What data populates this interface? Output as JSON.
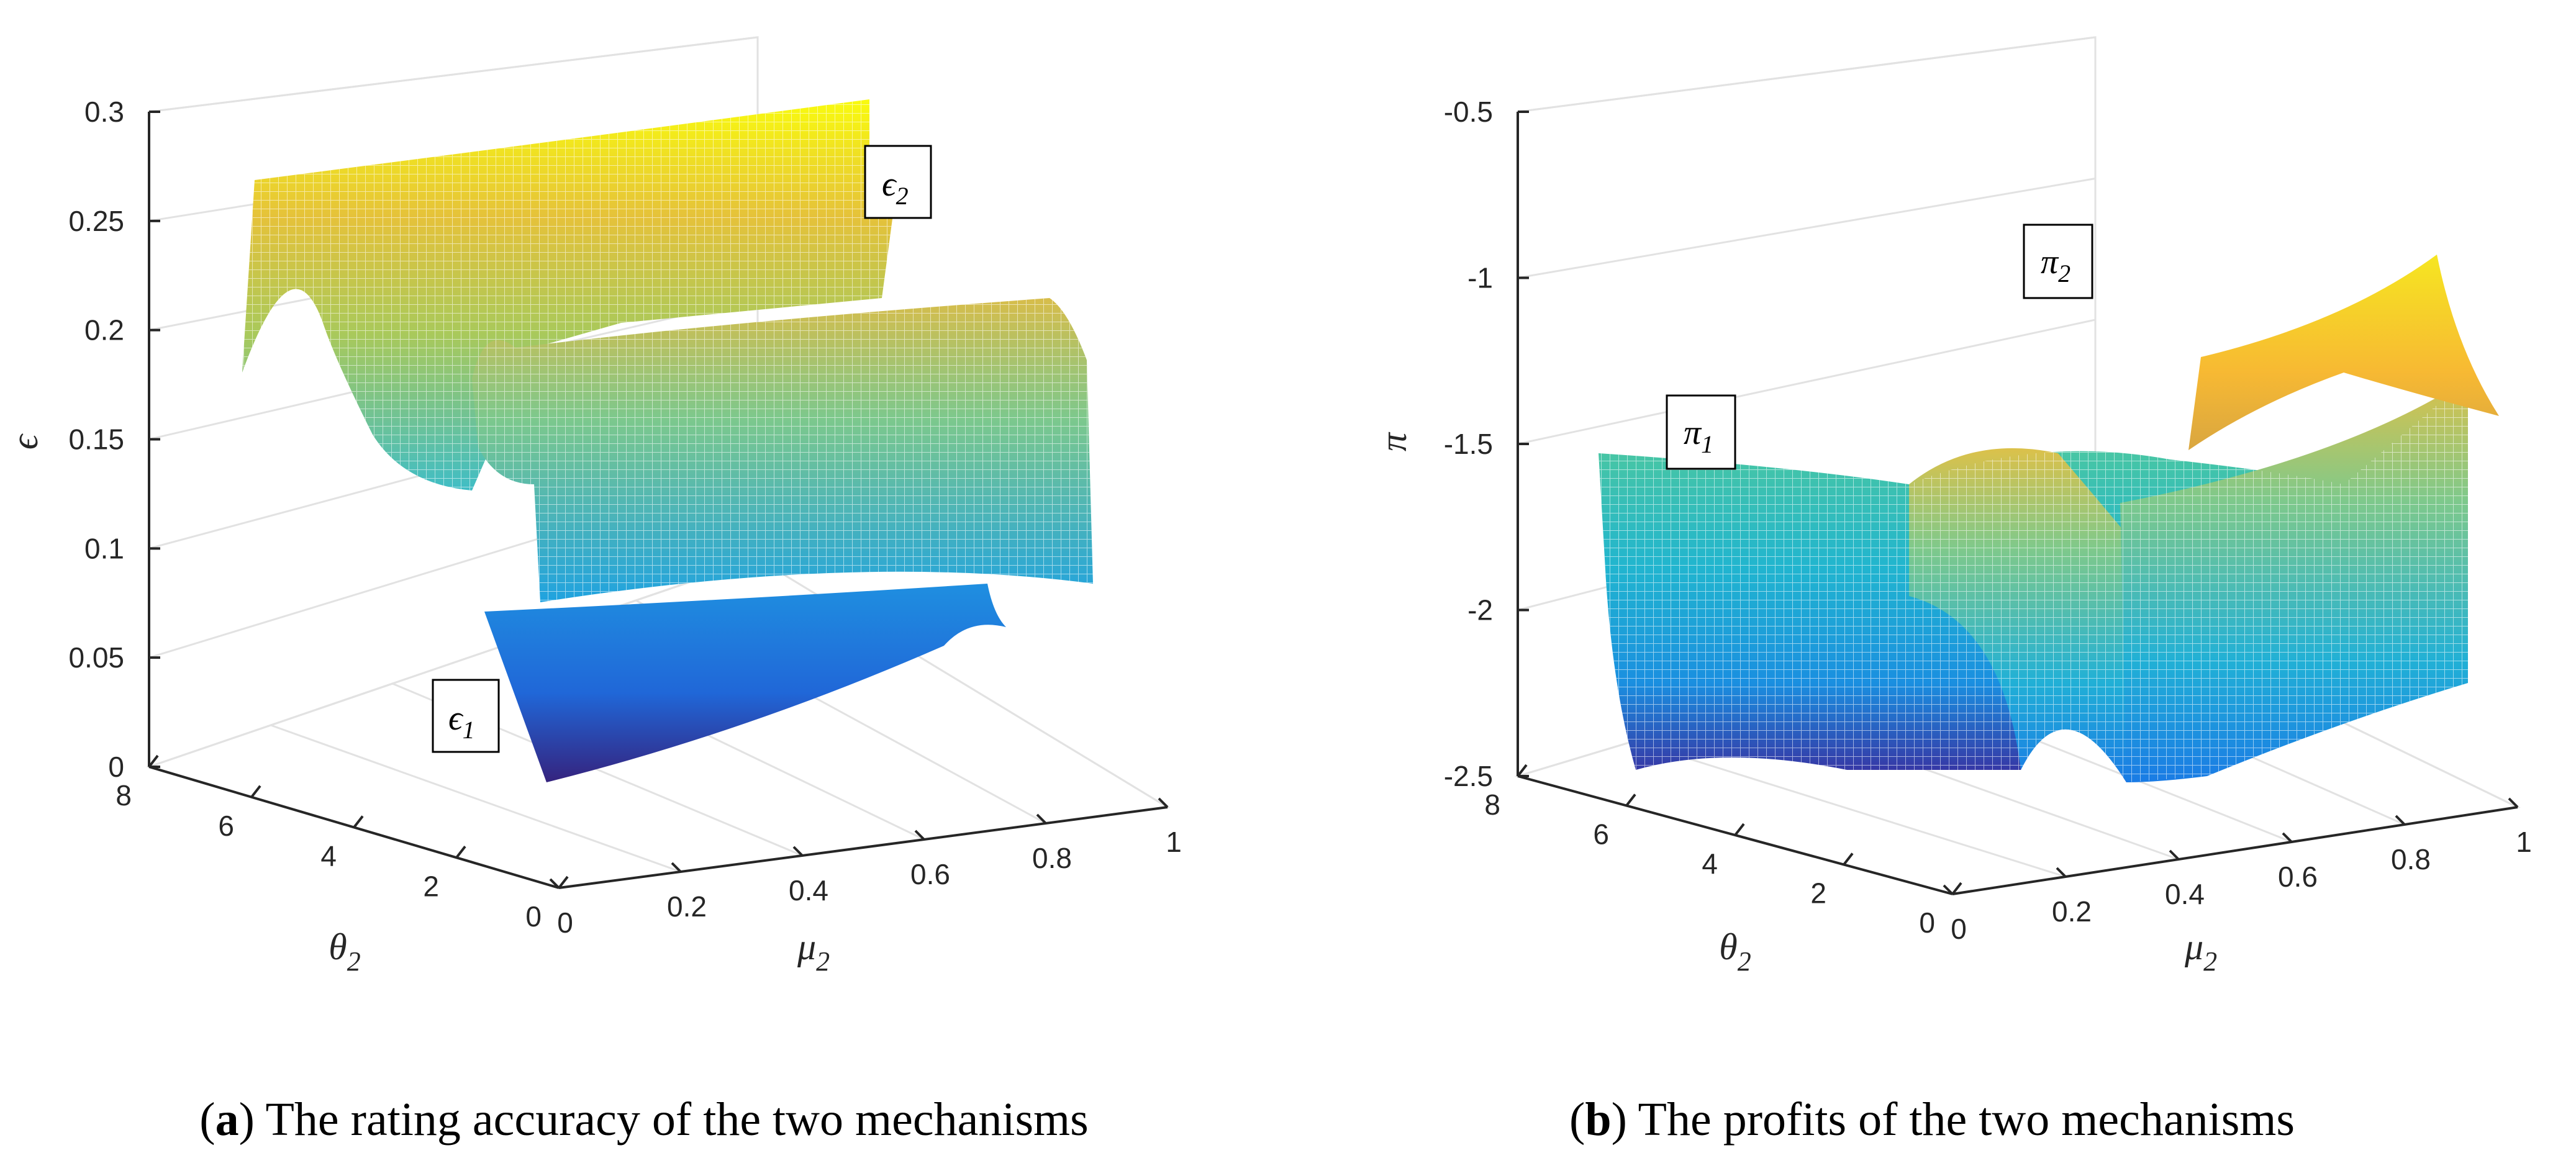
{
  "chart_data": [
    {
      "type": "surface3d",
      "panel_tag": "a",
      "caption": "The rating accuracy of the two mechanisms",
      "zlabel": "ϵ",
      "xlabel": "μ",
      "xlabel_sub": "2",
      "ylabel": "θ",
      "ylabel_sub": "2",
      "xlim": [
        0,
        1
      ],
      "ylim": [
        0,
        8
      ],
      "zlim": [
        0,
        0.3
      ],
      "x_ticks": [
        "0",
        "0.2",
        "0.4",
        "0.6",
        "0.8",
        "1"
      ],
      "y_ticks": [
        "0",
        "2",
        "4",
        "6",
        "8"
      ],
      "z_ticks": [
        "0",
        "0.05",
        "0.1",
        "0.15",
        "0.2",
        "0.25",
        "0.3"
      ],
      "series": [
        {
          "name": "ϵ",
          "sub": "1",
          "z_range": [
            0.0,
            0.08
          ],
          "style": "filled",
          "colormap": "parula-low"
        },
        {
          "name": "ϵ",
          "sub": "2",
          "z_range": [
            0.1,
            0.3
          ],
          "style": "mesh",
          "colormap": "parula-high"
        }
      ]
    },
    {
      "type": "surface3d",
      "panel_tag": "b",
      "caption": "The profits of the two mechanisms",
      "zlabel": "π",
      "xlabel": "μ",
      "xlabel_sub": "2",
      "ylabel": "θ",
      "ylabel_sub": "2",
      "xlim": [
        0,
        1
      ],
      "ylim": [
        0,
        8
      ],
      "zlim": [
        -2.5,
        -0.5
      ],
      "x_ticks": [
        "0",
        "0.2",
        "0.4",
        "0.6",
        "0.8",
        "1"
      ],
      "y_ticks": [
        "0",
        "2",
        "4",
        "6",
        "8"
      ],
      "z_ticks": [
        "-2.5",
        "-2",
        "-1.5",
        "-1",
        "-0.5"
      ],
      "series": [
        {
          "name": "π",
          "sub": "1",
          "z_range": [
            -2.5,
            -1.5
          ],
          "style": "mesh",
          "colormap": "parula-full"
        },
        {
          "name": "π",
          "sub": "2",
          "z_range": [
            -1.5,
            -0.9
          ],
          "style": "filled",
          "colormap": "parula-high"
        }
      ]
    }
  ]
}
